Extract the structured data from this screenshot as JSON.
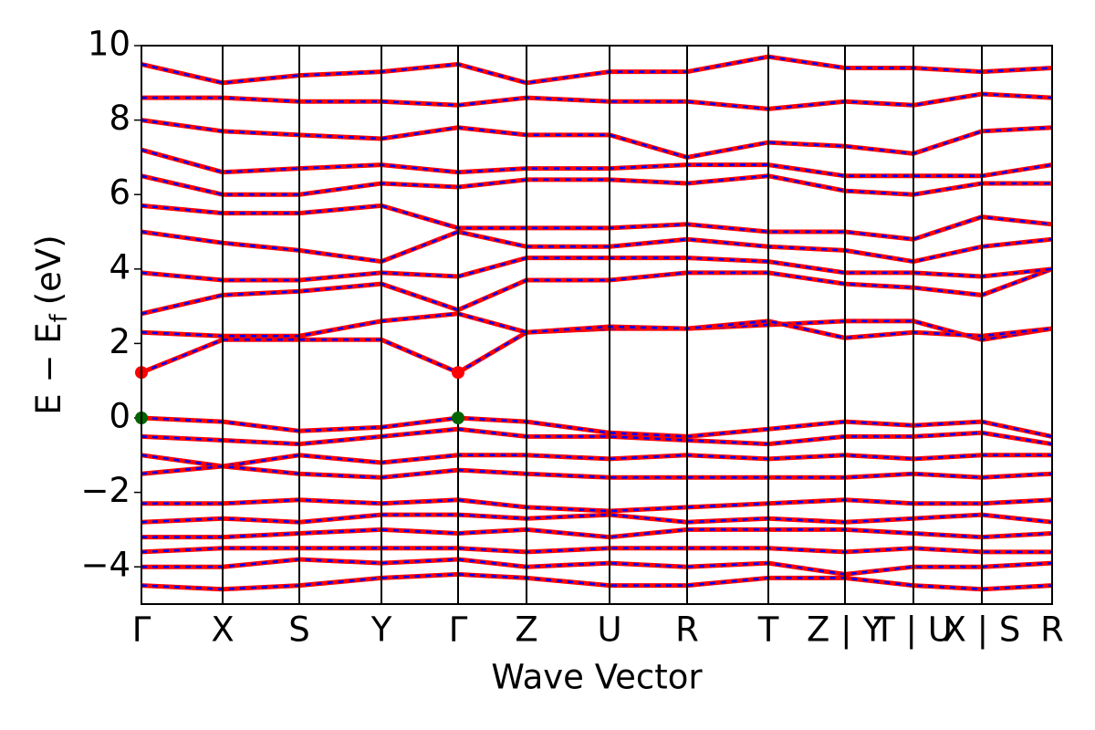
{
  "chart_data": {
    "type": "line",
    "xlabel": "Wave Vector",
    "ylabel": {
      "main": "E − E",
      "sub": "f",
      "unit": "(eV)"
    },
    "color": "#ff0000",
    "dash_color": "#0000ff",
    "xlim": [
      0,
      9.98
    ],
    "ylim": [
      -5,
      10
    ],
    "xticks": [
      {
        "value": 0,
        "label": "Γ"
      },
      {
        "value": 0.89,
        "label": "X"
      },
      {
        "value": 1.73,
        "label": "S"
      },
      {
        "value": 2.63,
        "label": "Y"
      },
      {
        "value": 3.47,
        "label": "Γ"
      },
      {
        "value": 4.22,
        "label": "Z"
      },
      {
        "value": 5.13,
        "label": "U"
      },
      {
        "value": 5.98,
        "label": "R"
      },
      {
        "value": 6.87,
        "label": "T"
      },
      {
        "value": 7.71,
        "label": "Z | Y"
      },
      {
        "value": 8.46,
        "label": "T | U"
      },
      {
        "value": 9.21,
        "label": "X | S"
      },
      {
        "value": 9.98,
        "label": "R"
      }
    ],
    "yticks": [
      {
        "value": -4,
        "label": "−4"
      },
      {
        "value": -2,
        "label": "−2"
      },
      0,
      2,
      4,
      6,
      8,
      10
    ],
    "x": [
      0,
      0.89,
      1.73,
      2.63,
      3.47,
      4.22,
      5.13,
      5.98,
      6.87,
      7.71,
      8.46,
      9.21,
      9.98
    ],
    "series": [
      {
        "values": [
          1.22,
          2.1,
          2.1,
          2.1,
          1.22,
          2.3,
          2.4,
          2.4,
          2.5,
          2.6,
          2.6,
          2.1,
          2.4
        ]
      },
      {
        "values": [
          2.3,
          2.2,
          2.2,
          2.6,
          2.8,
          2.3,
          2.45,
          2.4,
          2.6,
          2.15,
          2.3,
          2.2,
          2.4
        ]
      },
      {
        "values": [
          2.8,
          3.3,
          3.4,
          3.6,
          2.9,
          3.7,
          3.7,
          3.9,
          3.9,
          3.6,
          3.5,
          3.3,
          4.0
        ]
      },
      {
        "values": [
          3.9,
          3.7,
          3.7,
          3.9,
          3.8,
          4.3,
          4.3,
          4.3,
          4.2,
          3.9,
          3.9,
          3.8,
          4.0
        ]
      },
      {
        "values": [
          5.0,
          4.7,
          4.5,
          4.2,
          5.0,
          4.6,
          4.6,
          4.8,
          4.6,
          4.5,
          4.2,
          4.6,
          4.8
        ]
      },
      {
        "values": [
          5.7,
          5.5,
          5.5,
          5.7,
          5.1,
          5.1,
          5.1,
          5.2,
          5.0,
          5.0,
          4.8,
          5.4,
          5.2
        ]
      },
      {
        "values": [
          6.5,
          6.0,
          6.0,
          6.3,
          6.2,
          6.4,
          6.4,
          6.3,
          6.5,
          6.1,
          6.0,
          6.3,
          6.3
        ]
      },
      {
        "values": [
          7.2,
          6.6,
          6.7,
          6.8,
          6.6,
          6.7,
          6.7,
          6.8,
          6.8,
          6.5,
          6.5,
          6.5,
          6.8
        ]
      },
      {
        "values": [
          8.0,
          7.7,
          7.6,
          7.5,
          7.8,
          7.6,
          7.6,
          7.0,
          7.4,
          7.3,
          7.1,
          7.7,
          7.8
        ]
      },
      {
        "values": [
          8.6,
          8.6,
          8.5,
          8.5,
          8.4,
          8.6,
          8.5,
          8.5,
          8.3,
          8.5,
          8.4,
          8.7,
          8.6
        ]
      },
      {
        "values": [
          9.5,
          9.0,
          9.2,
          9.3,
          9.5,
          9.0,
          9.3,
          9.3,
          9.7,
          9.4,
          9.4,
          9.3,
          9.4
        ]
      },
      {
        "values": [
          0,
          -0.1,
          -0.35,
          -0.25,
          0,
          -0.1,
          -0.4,
          -0.5,
          -0.3,
          -0.1,
          -0.2,
          -0.1,
          -0.5
        ]
      },
      {
        "values": [
          -0.5,
          -0.6,
          -0.7,
          -0.5,
          -0.3,
          -0.5,
          -0.5,
          -0.6,
          -0.7,
          -0.5,
          -0.5,
          -0.4,
          -0.7
        ]
      },
      {
        "values": [
          -1.0,
          -1.3,
          -1.0,
          -1.2,
          -1.0,
          -1.0,
          -1.1,
          -1.0,
          -1.1,
          -1.0,
          -1.1,
          -1.0,
          -1.0
        ]
      },
      {
        "values": [
          -1.5,
          -1.3,
          -1.5,
          -1.6,
          -1.4,
          -1.5,
          -1.6,
          -1.6,
          -1.6,
          -1.6,
          -1.5,
          -1.6,
          -1.5
        ]
      },
      {
        "values": [
          -2.3,
          -2.3,
          -2.2,
          -2.3,
          -2.2,
          -2.4,
          -2.5,
          -2.4,
          -2.3,
          -2.2,
          -2.3,
          -2.3,
          -2.2
        ]
      },
      {
        "values": [
          -2.8,
          -2.7,
          -2.8,
          -2.6,
          -2.6,
          -2.7,
          -2.6,
          -2.8,
          -2.7,
          -2.8,
          -2.7,
          -2.6,
          -2.8
        ]
      },
      {
        "values": [
          -3.2,
          -3.2,
          -3.1,
          -3.0,
          -3.1,
          -3.0,
          -3.2,
          -3.0,
          -3.0,
          -3.0,
          -3.1,
          -3.2,
          -3.1
        ]
      },
      {
        "values": [
          -3.6,
          -3.5,
          -3.5,
          -3.5,
          -3.5,
          -3.6,
          -3.5,
          -3.5,
          -3.5,
          -3.6,
          -3.5,
          -3.6,
          -3.6
        ]
      },
      {
        "values": [
          -4.0,
          -4.0,
          -3.8,
          -3.9,
          -3.8,
          -4.0,
          -3.9,
          -4.0,
          -3.9,
          -4.2,
          -4.0,
          -4.0,
          -3.9
        ]
      },
      {
        "values": [
          -4.5,
          -4.6,
          -4.5,
          -4.3,
          -4.2,
          -4.3,
          -4.5,
          -4.5,
          -4.3,
          -4.3,
          -4.5,
          -4.6,
          -4.5
        ]
      }
    ],
    "markers": [
      {
        "x": 0,
        "y": 1.22,
        "color": "#ff0000"
      },
      {
        "x": 3.47,
        "y": 1.22,
        "color": "#ff0000"
      },
      {
        "x": 0,
        "y": 0,
        "color": "#006400"
      },
      {
        "x": 3.47,
        "y": 0,
        "color": "#006400"
      }
    ]
  }
}
